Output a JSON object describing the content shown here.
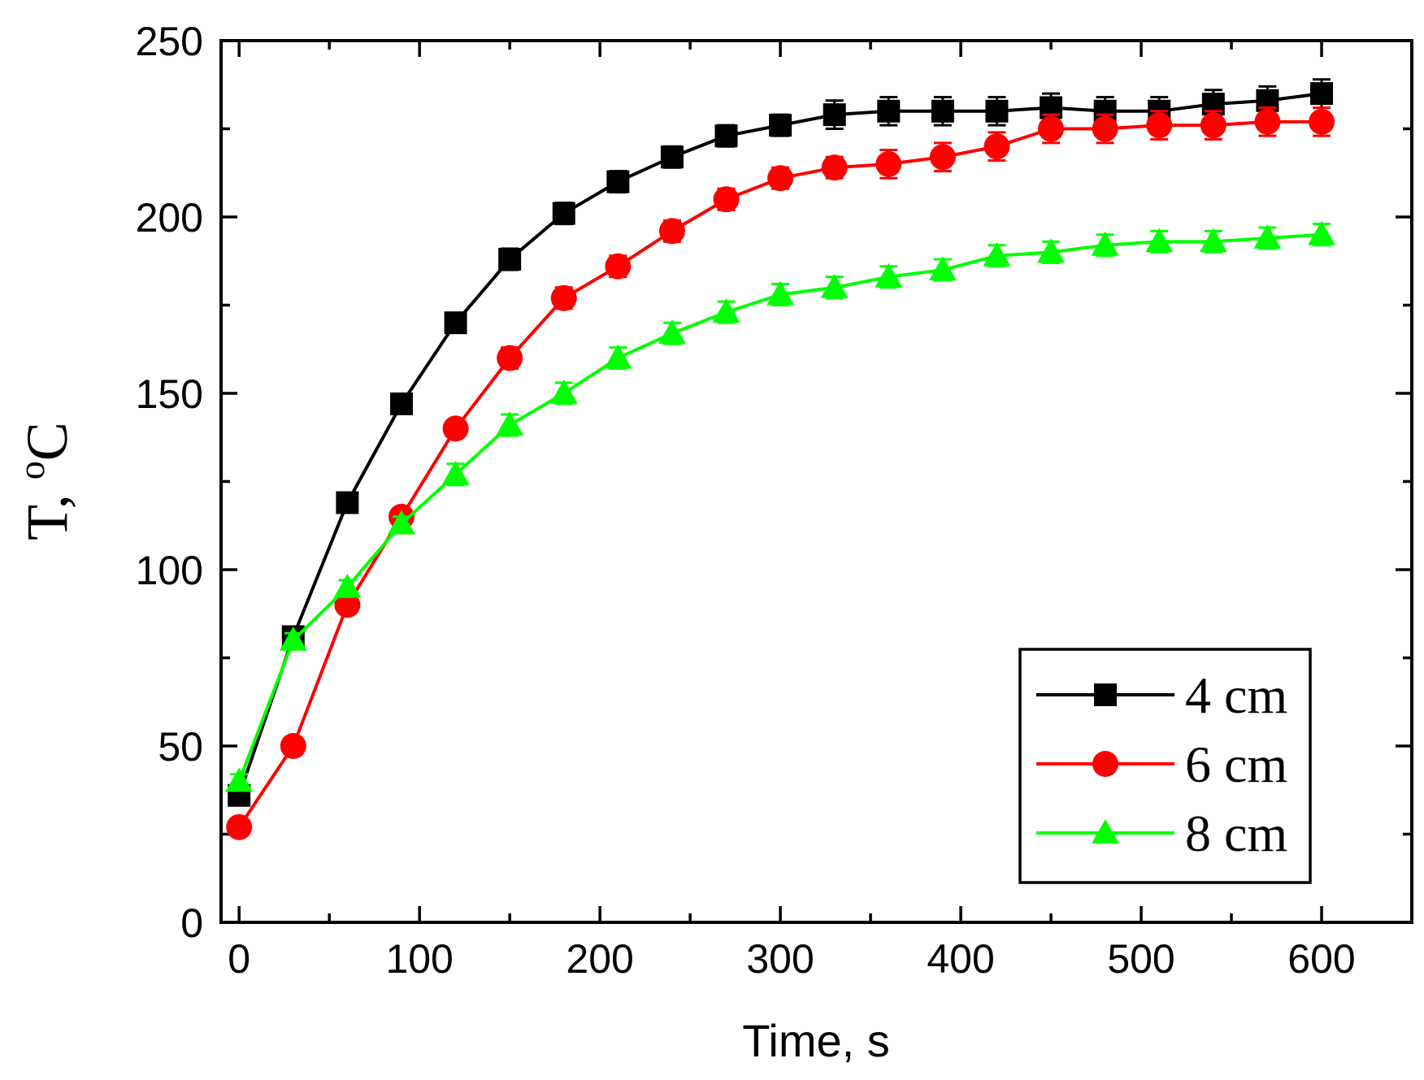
{
  "chart_data": {
    "type": "line",
    "title": "",
    "xlabel": "Time, s",
    "ylabel_main": "T, ",
    "ylabel_sup": "o",
    "ylabel_unit": "C",
    "xlim": [
      -10,
      650
    ],
    "ylim": [
      0,
      250
    ],
    "xticks": [
      0,
      100,
      200,
      300,
      400,
      500,
      600
    ],
    "yticks": [
      0,
      50,
      100,
      150,
      200,
      250
    ],
    "xtick_labels": [
      "0",
      "100",
      "200",
      "300",
      "400",
      "500",
      "600"
    ],
    "ytick_labels": [
      "0",
      "50",
      "100",
      "150",
      "200",
      "250"
    ],
    "legend_position": "bottom-right",
    "x": [
      0,
      30,
      60,
      90,
      120,
      150,
      180,
      210,
      240,
      270,
      300,
      330,
      360,
      390,
      420,
      450,
      480,
      510,
      540,
      570,
      600
    ],
    "series": [
      {
        "name": "4 cm",
        "color": "#000000",
        "marker": "square",
        "values": [
          36,
          81,
          119,
          147,
          170,
          188,
          201,
          210,
          217,
          223,
          226,
          229,
          230,
          230,
          230,
          231,
          230,
          230,
          232,
          233,
          235
        ],
        "errors": [
          2,
          2,
          2,
          2,
          2,
          3,
          3,
          3,
          3,
          3,
          3,
          4,
          4,
          4,
          4,
          4,
          4,
          4,
          4,
          4,
          4
        ]
      },
      {
        "name": "6 cm",
        "color": "#ff0000",
        "marker": "circle",
        "values": [
          27,
          50,
          90,
          115,
          140,
          160,
          177,
          186,
          196,
          205,
          211,
          214,
          215,
          217,
          220,
          225,
          225,
          226,
          226,
          227,
          227
        ],
        "errors": [
          2,
          2,
          2,
          2,
          2,
          3,
          3,
          3,
          3,
          3,
          3,
          3,
          4,
          4,
          4,
          4,
          4,
          4,
          4,
          4,
          4
        ]
      },
      {
        "name": "8 cm",
        "color": "#00ff00",
        "marker": "triangle",
        "values": [
          40,
          80,
          95,
          113,
          127,
          141,
          150,
          160,
          167,
          173,
          178,
          180,
          183,
          185,
          189,
          190,
          192,
          193,
          193,
          194,
          195
        ],
        "errors": [
          2,
          2,
          2,
          2,
          3,
          3,
          3,
          3,
          3,
          3,
          3,
          3,
          3,
          3,
          3,
          3,
          3,
          3,
          3,
          3,
          3
        ]
      }
    ]
  }
}
